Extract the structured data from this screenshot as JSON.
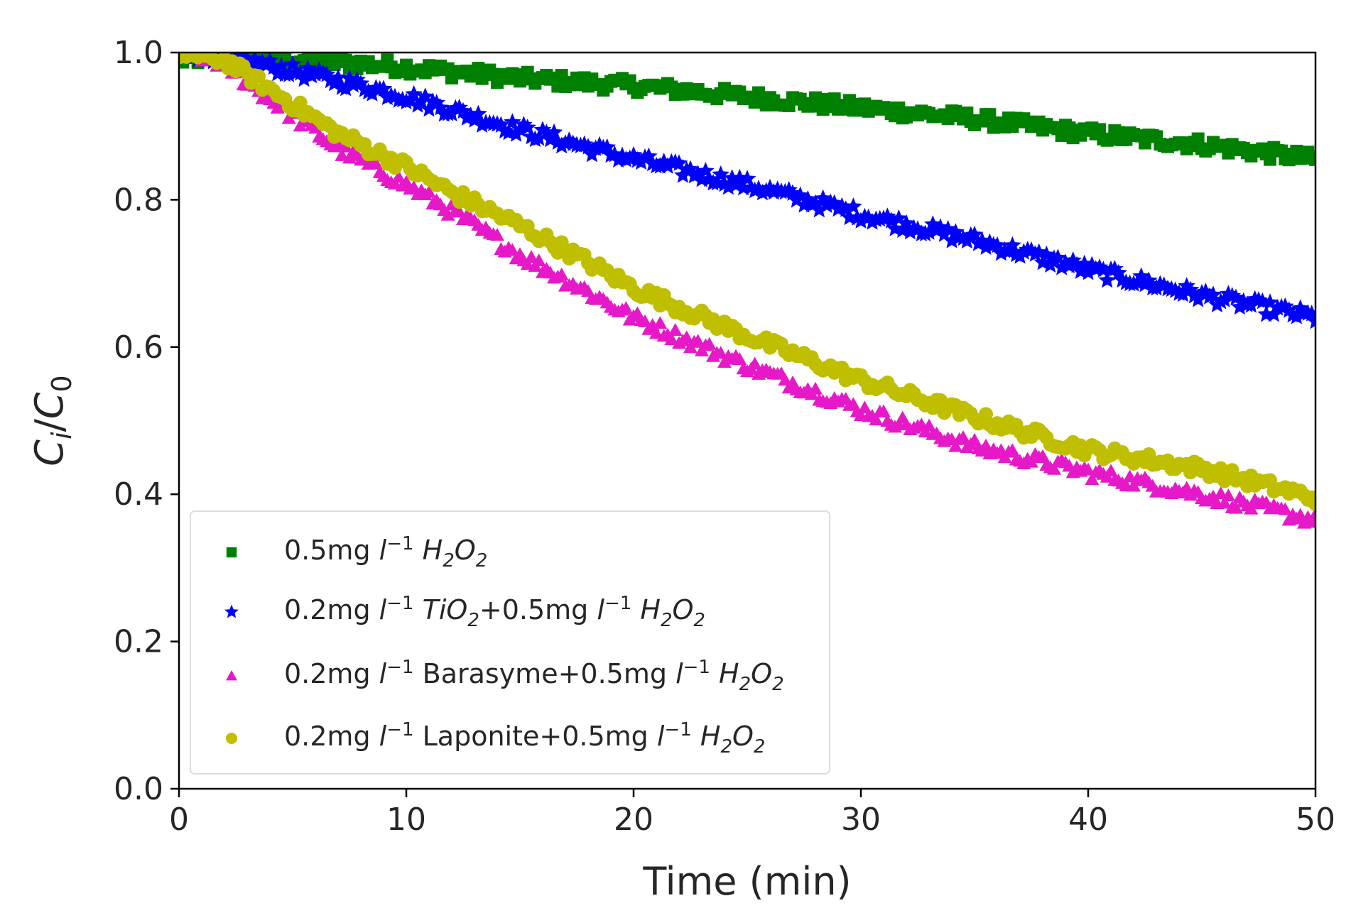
{
  "chart_data": {
    "type": "scatter",
    "title": "",
    "xlabel": "Time (min)",
    "ylabel": {
      "base": "C",
      "sub1": "i",
      "slash": "/",
      "base2": "C",
      "sub2": "0"
    },
    "xlim": [
      0,
      50
    ],
    "ylim": [
      0.0,
      1.0
    ],
    "x_ticks": [
      0,
      10,
      20,
      30,
      40,
      50
    ],
    "y_ticks": [
      0.0,
      0.2,
      0.4,
      0.6,
      0.8,
      1.0
    ],
    "x_tick_labels": [
      "0",
      "10",
      "20",
      "30",
      "40",
      "50"
    ],
    "y_tick_labels": [
      "0.0",
      "0.2",
      "0.4",
      "0.6",
      "0.8",
      "1.0"
    ],
    "grid": false,
    "legend_position": "lower-left",
    "series": [
      {
        "name": "0.5mg l-1 H2O2",
        "label_parts": [
          {
            "t": "0.5mg ",
            "s": "n"
          },
          {
            "t": "l",
            "s": "i"
          },
          {
            "t": "−1",
            "s": "sup"
          },
          {
            "t": " ",
            "s": "n"
          },
          {
            "t": "H",
            "s": "i"
          },
          {
            "t": "2",
            "s": "sub"
          },
          {
            "t": "O",
            "s": "i"
          },
          {
            "t": "2",
            "s": "sub"
          }
        ],
        "color": "#008000",
        "marker": "square",
        "points": [
          [
            0,
            0.99
          ],
          [
            2,
            0.995
          ],
          [
            5,
            0.99
          ],
          [
            8,
            0.985
          ],
          [
            10,
            0.98
          ],
          [
            15,
            0.965
          ],
          [
            20,
            0.955
          ],
          [
            25,
            0.94
          ],
          [
            30,
            0.925
          ],
          [
            35,
            0.91
          ],
          [
            40,
            0.89
          ],
          [
            45,
            0.875
          ],
          [
            50,
            0.855
          ]
        ]
      },
      {
        "name": "0.2mg l-1 TiO2+0.5mg l-1 H2O2",
        "label_parts": [
          {
            "t": "0.2mg ",
            "s": "n"
          },
          {
            "t": "l",
            "s": "i"
          },
          {
            "t": "−1",
            "s": "sup"
          },
          {
            "t": " ",
            "s": "n"
          },
          {
            "t": "TiO",
            "s": "i"
          },
          {
            "t": "2",
            "s": "sub"
          },
          {
            "t": "+0.5mg ",
            "s": "n"
          },
          {
            "t": "l",
            "s": "i"
          },
          {
            "t": "−1",
            "s": "sup"
          },
          {
            "t": " ",
            "s": "n"
          },
          {
            "t": "H",
            "s": "i"
          },
          {
            "t": "2",
            "s": "sub"
          },
          {
            "t": "O",
            "s": "i"
          },
          {
            "t": "2",
            "s": "sub"
          }
        ],
        "color": "#0000ff",
        "marker": "star",
        "points": [
          [
            0,
            1.0
          ],
          [
            2,
            0.995
          ],
          [
            5,
            0.975
          ],
          [
            8,
            0.955
          ],
          [
            10,
            0.94
          ],
          [
            15,
            0.895
          ],
          [
            20,
            0.855
          ],
          [
            25,
            0.82
          ],
          [
            30,
            0.78
          ],
          [
            35,
            0.745
          ],
          [
            40,
            0.705
          ],
          [
            45,
            0.67
          ],
          [
            50,
            0.64
          ]
        ]
      },
      {
        "name": "0.2mg l-1 Barasyme+0.5mg l-1 H2O2",
        "label_parts": [
          {
            "t": "0.2mg ",
            "s": "n"
          },
          {
            "t": "l",
            "s": "i"
          },
          {
            "t": "−1",
            "s": "sup"
          },
          {
            "t": " Barasyme+0.5mg ",
            "s": "n"
          },
          {
            "t": "l",
            "s": "i"
          },
          {
            "t": "−1",
            "s": "sup"
          },
          {
            "t": " ",
            "s": "n"
          },
          {
            "t": "H",
            "s": "i"
          },
          {
            "t": "2",
            "s": "sub"
          },
          {
            "t": "O",
            "s": "i"
          },
          {
            "t": "2",
            "s": "sub"
          }
        ],
        "color": "#e619c8",
        "marker": "triangle",
        "points": [
          [
            0,
            1.0
          ],
          [
            1,
            0.995
          ],
          [
            2,
            0.985
          ],
          [
            3,
            0.96
          ],
          [
            5,
            0.915
          ],
          [
            7,
            0.87
          ],
          [
            10,
            0.82
          ],
          [
            12,
            0.785
          ],
          [
            15,
            0.725
          ],
          [
            18,
            0.675
          ],
          [
            20,
            0.64
          ],
          [
            25,
            0.575
          ],
          [
            30,
            0.515
          ],
          [
            35,
            0.465
          ],
          [
            40,
            0.43
          ],
          [
            45,
            0.4
          ],
          [
            50,
            0.365
          ]
        ]
      },
      {
        "name": "0.2mg l-1 Laponite+0.5mg l-1 H2O2",
        "label_parts": [
          {
            "t": "0.2mg ",
            "s": "n"
          },
          {
            "t": "l",
            "s": "i"
          },
          {
            "t": "−1",
            "s": "sup"
          },
          {
            "t": " Laponite+0.5mg ",
            "s": "n"
          },
          {
            "t": "l",
            "s": "i"
          },
          {
            "t": "−1",
            "s": "sup"
          },
          {
            "t": " ",
            "s": "n"
          },
          {
            "t": "H",
            "s": "i"
          },
          {
            "t": "2",
            "s": "sub"
          },
          {
            "t": "O",
            "s": "i"
          },
          {
            "t": "2",
            "s": "sub"
          }
        ],
        "color": "#bfbf00",
        "marker": "circle",
        "points": [
          [
            0,
            1.0
          ],
          [
            1,
            0.995
          ],
          [
            2,
            0.99
          ],
          [
            3,
            0.97
          ],
          [
            5,
            0.93
          ],
          [
            7,
            0.89
          ],
          [
            10,
            0.845
          ],
          [
            12,
            0.81
          ],
          [
            15,
            0.765
          ],
          [
            18,
            0.715
          ],
          [
            20,
            0.68
          ],
          [
            25,
            0.615
          ],
          [
            30,
            0.555
          ],
          [
            35,
            0.505
          ],
          [
            40,
            0.46
          ],
          [
            45,
            0.435
          ],
          [
            50,
            0.395
          ]
        ]
      }
    ]
  }
}
